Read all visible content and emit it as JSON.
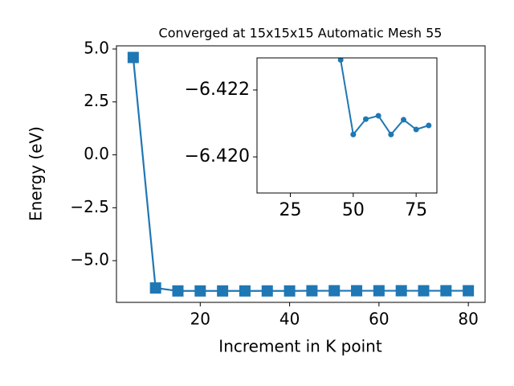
{
  "chart_data": [
    {
      "type": "line",
      "title": "Converged at 15x15x15 Automatic Mesh 55",
      "x_label": "Increment in K point",
      "y_label": "Energy (eV)",
      "x": [
        5,
        10,
        15,
        20,
        25,
        30,
        35,
        40,
        45,
        50,
        55,
        60,
        65,
        70,
        75,
        80
      ],
      "series": [
        {
          "color": "#1f77b4",
          "marker": "square",
          "values": [
            4.6,
            -6.29,
            -6.43,
            -6.43,
            -6.43,
            -6.43,
            -6.43,
            -6.43,
            -6.4229,
            -6.42067,
            -6.42113,
            -6.42123,
            -6.42067,
            -6.42111,
            -6.42082,
            -6.42094
          ]
        }
      ],
      "xlim": [
        1.25,
        83.75
      ],
      "ylim": [
        -6.97,
        5.15
      ],
      "xticks": [
        20,
        40,
        60,
        80
      ],
      "yticks": [
        {
          "value": 5.0,
          "label": "5.0"
        },
        {
          "value": 2.5,
          "label": "2.5"
        },
        {
          "value": 0.0,
          "label": "0.0"
        },
        {
          "value": -2.5,
          "label": "−2.5"
        },
        {
          "value": -5.0,
          "label": "−5.0"
        }
      ]
    },
    {
      "type": "line",
      "x": [
        45,
        50,
        55,
        60,
        65,
        70,
        75,
        80
      ],
      "series": [
        {
          "color": "#1f77b4",
          "marker": "circle",
          "values": [
            -6.4229,
            -6.42067,
            -6.42113,
            -6.42123,
            -6.42067,
            -6.42111,
            -6.42082,
            -6.42094
          ]
        }
      ],
      "xlim": [
        11.75,
        83.25
      ],
      "ylim": [
        -6.41892,
        -6.42296
      ],
      "xticks": [
        25,
        50,
        75
      ],
      "yticks": [
        {
          "value": -6.422,
          "label": "−6.422"
        },
        {
          "value": -6.42,
          "label": "−6.420"
        }
      ]
    }
  ]
}
